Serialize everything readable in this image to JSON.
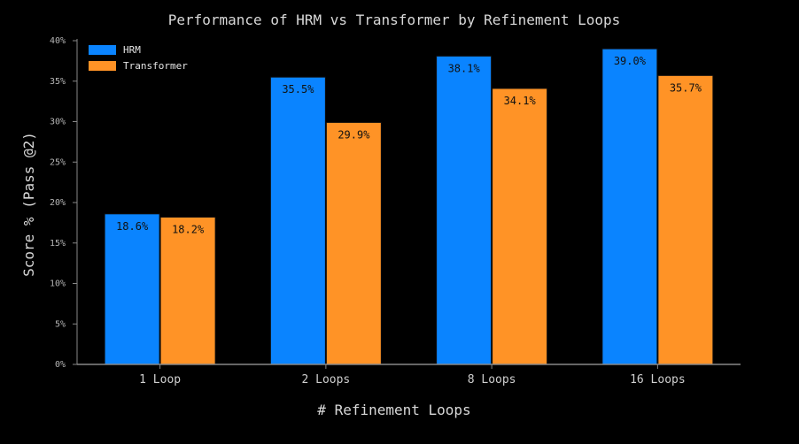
{
  "chart_data": {
    "type": "bar",
    "title": "Performance of HRM vs Transformer by Refinement Loops",
    "xlabel": "# Refinement Loops",
    "ylabel": "Score % (Pass @2)",
    "categories": [
      "1 Loop",
      "2 Loops",
      "8 Loops",
      "16 Loops"
    ],
    "series": [
      {
        "name": "HRM",
        "color": "#0a84ff",
        "values": [
          18.6,
          35.5,
          38.1,
          39.0
        ],
        "labels": [
          "18.6%",
          "35.5%",
          "38.1%",
          "39.0%"
        ]
      },
      {
        "name": "Transformer",
        "color": "#ff9326",
        "values": [
          18.2,
          29.9,
          34.1,
          35.7
        ],
        "labels": [
          "18.2%",
          "29.9%",
          "34.1%",
          "35.7%"
        ]
      }
    ],
    "ylim": [
      0,
      40
    ],
    "yticks": [
      0,
      5,
      10,
      15,
      20,
      25,
      30,
      35,
      40
    ],
    "ytick_labels": [
      "0%",
      "5%",
      "10%",
      "15%",
      "20%",
      "25%",
      "30%",
      "35%",
      "40%"
    ],
    "legend_position": "top-left",
    "grid": false,
    "background": "#000000"
  }
}
